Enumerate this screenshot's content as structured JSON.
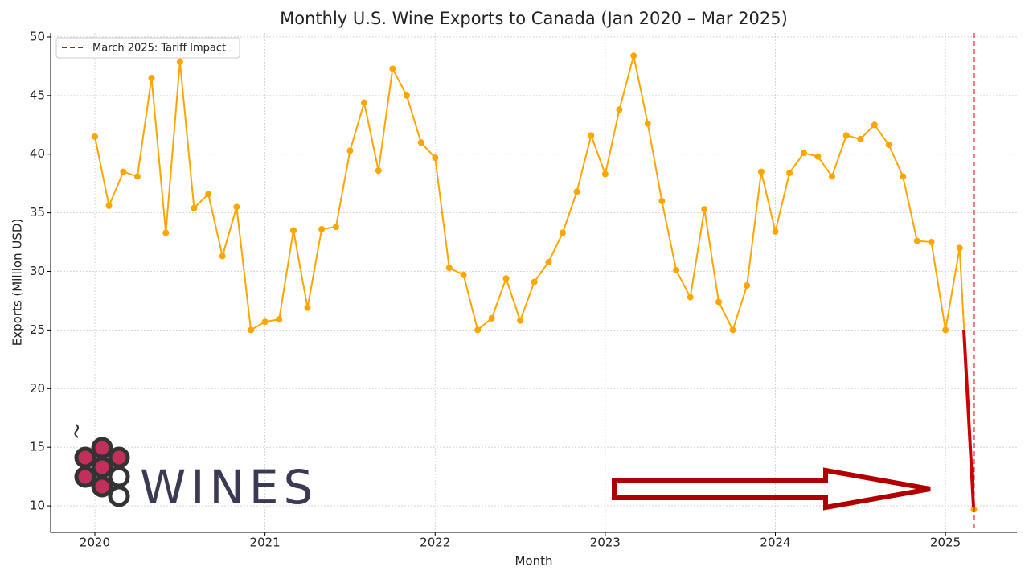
{
  "chart_data": {
    "type": "line",
    "title": "Monthly U.S. Wine Exports to Canada (Jan 2020 – Mar 2025)",
    "x_label": "Month",
    "y_label": "Exports (Million USD)",
    "color": "#FFA500",
    "x": [
      2020.0,
      2020.083,
      2020.167,
      2020.25,
      2020.333,
      2020.417,
      2020.5,
      2020.583,
      2020.667,
      2020.75,
      2020.833,
      2020.917,
      2021.0,
      2021.083,
      2021.167,
      2021.25,
      2021.333,
      2021.417,
      2021.5,
      2021.583,
      2021.667,
      2021.75,
      2021.833,
      2021.917,
      2022.0,
      2022.083,
      2022.167,
      2022.25,
      2022.333,
      2022.417,
      2022.5,
      2022.583,
      2022.667,
      2022.75,
      2022.833,
      2022.917,
      2023.0,
      2023.083,
      2023.167,
      2023.25,
      2023.333,
      2023.417,
      2023.5,
      2023.583,
      2023.667,
      2023.75,
      2023.833,
      2023.917,
      2024.0,
      2024.083,
      2024.167,
      2024.25,
      2024.333,
      2024.417,
      2024.5,
      2024.583,
      2024.667,
      2024.75,
      2024.833,
      2024.917,
      2025.0,
      2025.083,
      2025.167
    ],
    "values": [
      41.5,
      35.6,
      38.5,
      38.1,
      46.5,
      33.3,
      47.9,
      35.4,
      36.6,
      31.3,
      35.5,
      25.0,
      25.7,
      25.9,
      33.5,
      26.9,
      33.6,
      33.8,
      40.3,
      44.4,
      38.6,
      47.3,
      45.0,
      41.0,
      39.7,
      30.3,
      29.7,
      25.0,
      26.0,
      29.4,
      25.8,
      29.1,
      30.8,
      33.3,
      36.8,
      41.6,
      38.3,
      43.8,
      48.4,
      42.6,
      36.0,
      30.1,
      27.8,
      35.3,
      27.4,
      25.0,
      28.8,
      38.5,
      33.4,
      38.4,
      40.1,
      39.8,
      38.1,
      41.6,
      41.3,
      42.5,
      40.8,
      38.1,
      32.6,
      32.5,
      25.0,
      32.0,
      9.7
    ],
    "xlim": [
      2019.74,
      2025.42
    ],
    "xticks": [
      2020,
      2021,
      2022,
      2023,
      2024,
      2025
    ],
    "ylim": [
      7.74,
      50.34
    ],
    "yticks": [
      10,
      15,
      20,
      25,
      30,
      35,
      40,
      45,
      50
    ],
    "grid": true,
    "vline": {
      "x": 2025.167,
      "label": "March 2025: Tariff Impact",
      "color": "#e00000"
    },
    "legend": "upper left"
  },
  "logo": "WINES"
}
